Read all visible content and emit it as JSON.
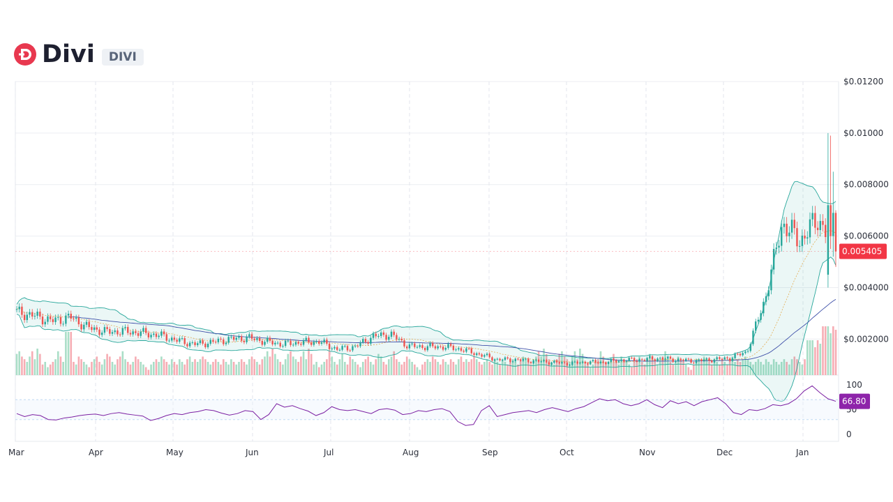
{
  "header": {
    "name": "Divi",
    "ticker": "DIVI",
    "logo_icon": "divi-logo-icon",
    "logo_color": "#e8384f"
  },
  "colors": {
    "up": "#26a69a",
    "down": "#ef5350",
    "bollinger": "#26a69a",
    "ma_long": "#3d4fa8",
    "rsi": "#7b1fa2",
    "price_badge": "#f23645",
    "rsi_badge": "#8e24aa"
  },
  "chart_data": {
    "type": "candlestick",
    "x_axis": {
      "labels": [
        "Mar",
        "Apr",
        "May",
        "Jun",
        "Jul",
        "Aug",
        "Sep",
        "Oct",
        "Nov",
        "Dec",
        "Jan"
      ]
    },
    "price_axis": {
      "range": [
        0.0006,
        0.012
      ],
      "ticks": [
        "$0.01200",
        "$0.01000",
        "$0.008000",
        "$0.006000",
        "$0.004000",
        "$0.002000"
      ],
      "tick_values": [
        0.012,
        0.01,
        0.008,
        0.006,
        0.004,
        0.002
      ]
    },
    "last_price": {
      "value": 0.005405,
      "label": "0.005405"
    },
    "close_series": [
      [
        "Mar",
        0.00305
      ],
      [
        "Mar",
        0.0029
      ],
      [
        "Mar",
        0.0027
      ],
      [
        "Mar",
        0.00285
      ],
      [
        "Apr",
        0.00245
      ],
      [
        "Apr",
        0.00228
      ],
      [
        "Apr",
        0.0023
      ],
      [
        "Apr",
        0.00224
      ],
      [
        "May",
        0.00215
      ],
      [
        "May",
        0.00195
      ],
      [
        "May",
        0.0018
      ],
      [
        "May",
        0.00188
      ],
      [
        "Jun",
        0.002
      ],
      [
        "Jun",
        0.00205
      ],
      [
        "Jun",
        0.0019
      ],
      [
        "Jun",
        0.0018
      ],
      [
        "Jul",
        0.00188
      ],
      [
        "Jul",
        0.0019
      ],
      [
        "Jul",
        0.0016
      ],
      [
        "Jul",
        0.0017
      ],
      [
        "Aug",
        0.0021
      ],
      [
        "Aug",
        0.00218
      ],
      [
        "Aug",
        0.00172
      ],
      [
        "Aug",
        0.0017
      ],
      [
        "Sep",
        0.0017
      ],
      [
        "Sep",
        0.0016
      ],
      [
        "Sep",
        0.0014
      ],
      [
        "Sep",
        0.0012
      ],
      [
        "Oct",
        0.0012
      ],
      [
        "Oct",
        0.00115
      ],
      [
        "Oct",
        0.0011
      ],
      [
        "Oct",
        0.00105
      ],
      [
        "Nov",
        0.0011
      ],
      [
        "Nov",
        0.0011
      ],
      [
        "Nov",
        0.00118
      ],
      [
        "Nov",
        0.0012
      ],
      [
        "Dec",
        0.00125
      ],
      [
        "Dec",
        0.0012
      ],
      [
        "Dec",
        0.00115
      ],
      [
        "Dec",
        0.0012
      ],
      [
        "Jan",
        0.00125
      ],
      [
        "Jan",
        0.0015
      ],
      [
        "Jan",
        0.0035
      ],
      [
        "Jan",
        0.0065
      ],
      [
        "Jan",
        0.0058
      ],
      [
        "Jan",
        0.0067
      ],
      [
        "Jan",
        0.005405
      ]
    ],
    "spikes": [
      {
        "high": 0.01,
        "low": 0.004,
        "open": 0.0045,
        "close": 0.0072
      },
      {
        "high": 0.0099,
        "low": 0.0055,
        "open": 0.0072,
        "close": 0.006
      },
      {
        "high": 0.0085,
        "low": 0.0052,
        "open": 0.006,
        "close": 0.0069
      },
      {
        "high": 0.007,
        "low": 0.0048,
        "open": 0.0069,
        "close": 0.005405
      }
    ],
    "rsi": {
      "ticks": [
        "100",
        "50",
        "0"
      ],
      "tick_values": [
        100,
        50,
        0
      ],
      "bands": [
        70,
        30
      ],
      "last": {
        "value": 66.8,
        "label": "66.80"
      },
      "values": [
        42,
        36,
        40,
        38,
        30,
        29,
        33,
        35,
        38,
        40,
        41,
        38,
        42,
        44,
        41,
        39,
        37,
        28,
        32,
        38,
        42,
        40,
        44,
        46,
        50,
        48,
        43,
        39,
        42,
        48,
        46,
        30,
        40,
        62,
        55,
        58,
        52,
        47,
        38,
        44,
        56,
        50,
        48,
        50,
        46,
        42,
        50,
        52,
        49,
        40,
        42,
        48,
        46,
        50,
        52,
        46,
        26,
        18,
        20,
        48,
        58,
        36,
        40,
        44,
        46,
        48,
        44,
        50,
        54,
        50,
        46,
        52,
        56,
        64,
        72,
        68,
        70,
        62,
        58,
        62,
        70,
        60,
        54,
        68,
        62,
        66,
        58,
        66,
        70,
        74,
        62,
        44,
        40,
        50,
        48,
        52,
        60,
        58,
        62,
        72,
        88,
        98,
        84,
        72,
        66.8
      ]
    },
    "volume": {
      "bars_relative": [
        0.8,
        0.9,
        0.7,
        0.6,
        0.5,
        0.7,
        0.9,
        0.6,
        1.0,
        0.8,
        0.4,
        0.5,
        0.3,
        0.4,
        0.5,
        0.6,
        0.9,
        0.7,
        0.5,
        0.4,
        0.6,
        0.8,
        0.5,
        0.4,
        0.7,
        0.6,
        0.5,
        0.4,
        0.3,
        0.5,
        0.6,
        0.7,
        0.5,
        0.4,
        0.6,
        0.8,
        0.7,
        0.5,
        0.4,
        0.6,
        0.7,
        0.9,
        0.6,
        0.5,
        0.4,
        0.5,
        0.7,
        0.6,
        0.5,
        0.4,
        0.3,
        0.2,
        0.4,
        0.5,
        0.6,
        0.5,
        0.7,
        0.6,
        0.5,
        0.4,
        0.6,
        0.5,
        0.4,
        0.6,
        0.5,
        0.4,
        0.6,
        0.7,
        0.5,
        0.6,
        0.5,
        0.6,
        0.7,
        0.6,
        0.5,
        0.4,
        0.5,
        0.6,
        0.5,
        0.4,
        0.6,
        0.5,
        0.4,
        0.6,
        0.5,
        0.4,
        0.5,
        0.6,
        0.5,
        0.4,
        0.6,
        0.7,
        0.6,
        0.5,
        0.4,
        0.6,
        0.7,
        0.9,
        0.7,
        1.0,
        0.8,
        0.6,
        0.5,
        0.4,
        0.6
      ],
      "big_bars_relative": [
        1.0,
        1.0,
        1.0,
        0.8,
        1.0,
        0.9
      ]
    }
  }
}
